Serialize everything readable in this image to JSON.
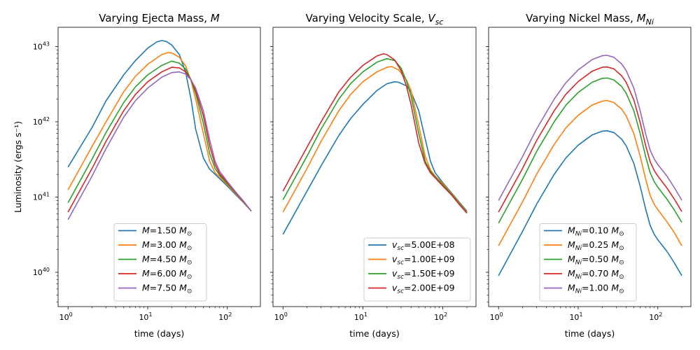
{
  "chart_data": [
    {
      "type": "line",
      "title": "Varying Ejecta Mass, $M$",
      "title_text": "Varying Ejecta Mass, ",
      "title_var": "M",
      "xlabel": "time (days)",
      "ylabel": "Luminosity (ergs s⁻¹)",
      "xscale": "log",
      "yscale": "log",
      "xlim": [
        0.75,
        260
      ],
      "ylim": [
        3.5e+39,
        1.8e+43
      ],
      "xticks": [
        "10^0",
        "10^1",
        "10^2"
      ],
      "yticks": [
        "10^40",
        "10^41",
        "10^42",
        "10^43"
      ],
      "legend_loc": "lower center",
      "series": [
        {
          "name": "M=1.50 M⊙",
          "color": "#1f77b4",
          "x": [
            1,
            2,
            3,
            5,
            7,
            10,
            13,
            15,
            17,
            20,
            25,
            30,
            35,
            40,
            50,
            60,
            70,
            80,
            100,
            130,
            160,
            200
          ],
          "y": [
            2.5e+41,
            8.4e+41,
            1.9e+42,
            4.2e+42,
            6.5e+42,
            9.5e+42,
            1.15e+43,
            1.2e+43,
            1.17e+43,
            1.05e+43,
            7.8e+42,
            4.5e+42,
            2e+42,
            8e+41,
            3.3e+41,
            2.35e+41,
            2e+41,
            1.75e+41,
            1.4e+41,
            1.05e+41,
            8.4e+40,
            6.5e+40
          ]
        },
        {
          "name": "M=3.00 M⊙",
          "color": "#ff7f0e",
          "x": [
            1,
            2,
            3,
            5,
            7,
            10,
            15,
            18,
            20,
            25,
            30,
            35,
            40,
            50,
            60,
            70,
            80,
            100,
            130,
            160,
            200
          ],
          "y": [
            1.25e+41,
            4.7e+41,
            1e+42,
            2.5e+42,
            4e+42,
            5.8e+42,
            7.8e+42,
            8.3e+42,
            8.2e+42,
            7.2e+42,
            5.5e+42,
            3.5e+42,
            2e+42,
            7e+41,
            3e+41,
            2.1e+41,
            1.85e+41,
            1.45e+41,
            1.08e+41,
            8.5e+40,
            6.5e+40
          ]
        },
        {
          "name": "M=4.50 M⊙",
          "color": "#2ca02c",
          "x": [
            1,
            2,
            3,
            5,
            7,
            10,
            15,
            20,
            25,
            30,
            35,
            40,
            50,
            60,
            70,
            80,
            100,
            130,
            160,
            200
          ],
          "y": [
            8.4e+40,
            3.2e+41,
            7.2e+41,
            1.8e+42,
            2.9e+42,
            4.2e+42,
            5.6e+42,
            6.4e+42,
            6e+42,
            5e+42,
            3.6e+42,
            2.4e+42,
            9.5e+41,
            3.8e+41,
            2.4e+41,
            1.95e+41,
            1.5e+41,
            1.1e+41,
            8.6e+40,
            6.5e+40
          ]
        },
        {
          "name": "M=6.00 M⊙",
          "color": "#d62728",
          "x": [
            1,
            2,
            3,
            5,
            7,
            10,
            15,
            20,
            25,
            30,
            35,
            40,
            50,
            60,
            70,
            80,
            100,
            130,
            160,
            200
          ],
          "y": [
            6.3e+40,
            2.4e+41,
            5.5e+41,
            1.4e+42,
            2.3e+42,
            3.4e+42,
            4.6e+42,
            5.3e+42,
            5.2e+42,
            4.6e+42,
            3.6e+42,
            2.6e+42,
            1.2e+42,
            4.8e+41,
            2.7e+41,
            2.05e+41,
            1.55e+41,
            1.12e+41,
            8.7e+40,
            6.5e+40
          ]
        },
        {
          "name": "M=7.50 M⊙",
          "color": "#9467bd",
          "x": [
            1,
            2,
            3,
            5,
            7,
            10,
            15,
            20,
            25,
            30,
            35,
            40,
            50,
            60,
            70,
            80,
            100,
            130,
            160,
            200
          ],
          "y": [
            5e+40,
            1.9e+41,
            4.4e+41,
            1.15e+42,
            1.9e+42,
            2.8e+42,
            3.9e+42,
            4.5e+42,
            4.6e+42,
            4.3e+42,
            3.6e+42,
            2.8e+42,
            1.4e+42,
            5.8e+41,
            3e+41,
            2.2e+41,
            1.6e+41,
            1.14e+41,
            8.8e+40,
            6.5e+40
          ]
        }
      ]
    },
    {
      "type": "line",
      "title": "Varying Velocity Scale, $V_{sc}$",
      "title_text": "Varying Velocity Scale, ",
      "title_var": "V",
      "title_sub": "sc",
      "xlabel": "time (days)",
      "xscale": "log",
      "yscale": "log",
      "xlim": [
        0.75,
        260
      ],
      "ylim": [
        3.5e+39,
        1.8e+43
      ],
      "xticks": [
        "10^0",
        "10^1",
        "10^2"
      ],
      "legend_loc": "lower right",
      "series": [
        {
          "name": "v_sc=5.00E+08",
          "color": "#1f77b4",
          "x": [
            1,
            2,
            3,
            5,
            7,
            10,
            15,
            20,
            25,
            28,
            35,
            40,
            50,
            60,
            70,
            80,
            100,
            130,
            160,
            200
          ],
          "y": [
            3.2e+40,
            1.2e+41,
            2.6e+41,
            6.6e+41,
            1.1e+42,
            1.7e+42,
            2.6e+42,
            3.2e+42,
            3.4e+42,
            3.35e+42,
            3e+42,
            2.5e+42,
            1.4e+42,
            6e+41,
            3e+41,
            2.1e+41,
            1.55e+41,
            1.12e+41,
            8.6e+40,
            6.5e+40
          ]
        },
        {
          "name": "v_sc=1.00E+09",
          "color": "#ff7f0e",
          "x": [
            1,
            2,
            3,
            5,
            7,
            10,
            15,
            20,
            23,
            28,
            35,
            40,
            50,
            60,
            70,
            80,
            100,
            130,
            160,
            200
          ],
          "y": [
            6.3e+40,
            2.4e+41,
            5.5e+41,
            1.4e+42,
            2.3e+42,
            3.4e+42,
            4.6e+42,
            5.3e+42,
            5.4e+42,
            4.9e+42,
            3.6e+42,
            2.6e+42,
            9e+41,
            3.5e+41,
            2.3e+41,
            1.9e+41,
            1.5e+41,
            1.1e+41,
            8.4e+40,
            6.3e+40
          ]
        },
        {
          "name": "v_sc=1.50E+09",
          "color": "#2ca02c",
          "x": [
            1,
            2,
            3,
            5,
            7,
            10,
            15,
            20,
            25,
            30,
            35,
            40,
            50,
            60,
            70,
            80,
            100,
            130,
            160,
            200
          ],
          "y": [
            9.2e+40,
            3.5e+41,
            8e+41,
            2e+42,
            3.2e+42,
            4.6e+42,
            6.2e+42,
            6.9e+42,
            6.5e+42,
            5.2e+42,
            3.5e+42,
            2.2e+42,
            7e+41,
            3e+41,
            2.2e+41,
            1.85e+41,
            1.45e+41,
            1.08e+41,
            8.2e+40,
            6.2e+40
          ]
        },
        {
          "name": "v_sc=2.00E+09",
          "color": "#d62728",
          "x": [
            1,
            2,
            3,
            5,
            7,
            10,
            15,
            18,
            20,
            25,
            30,
            35,
            40,
            50,
            60,
            70,
            80,
            100,
            130,
            160,
            200
          ],
          "y": [
            1.2e+41,
            4.6e+41,
            1e+42,
            2.5e+42,
            3.9e+42,
            5.6e+42,
            7.5e+42,
            8e+42,
            7.8e+42,
            6.6e+42,
            4.8e+42,
            3e+42,
            1.7e+42,
            5.2e+41,
            2.8e+41,
            2.1e+41,
            1.8e+41,
            1.4e+41,
            1.05e+41,
            8e+40,
            6.1e+40
          ]
        }
      ]
    },
    {
      "type": "line",
      "title": "Varying Nickel Mass, $M_{Ni}$",
      "title_text": "Varying Nickel Mass, ",
      "title_var": "M",
      "title_sub": "Ni",
      "xlabel": "time (days)",
      "xscale": "log",
      "yscale": "log",
      "xlim": [
        0.75,
        260
      ],
      "ylim": [
        3.5e+39,
        1.8e+43
      ],
      "xticks": [
        "10^0",
        "10^1",
        "10^2"
      ],
      "legend_loc": "lower center",
      "series": [
        {
          "name": "M_Ni=0.10 M⊙",
          "color": "#1f77b4",
          "x": [
            1,
            2,
            3,
            5,
            7,
            10,
            15,
            20,
            23,
            28,
            35,
            40,
            50,
            60,
            70,
            80,
            90,
            100,
            130,
            160,
            200
          ],
          "y": [
            9e+39,
            3.5e+40,
            8e+40,
            2e+41,
            3.3e+41,
            4.9e+41,
            6.7e+41,
            7.5e+41,
            7.6e+41,
            7.2e+41,
            5.9e+41,
            4.8e+41,
            2.8e+41,
            1.4e+41,
            7e+40,
            4.2e+40,
            3.2e+40,
            2.7e+40,
            1.9e+40,
            1.35e+40,
            9e+39
          ]
        },
        {
          "name": "M_Ni=0.25 M⊙",
          "color": "#ff7f0e",
          "x": [
            1,
            2,
            3,
            5,
            7,
            10,
            15,
            20,
            23,
            28,
            35,
            40,
            50,
            60,
            70,
            80,
            90,
            100,
            130,
            160,
            200
          ],
          "y": [
            2.25e+40,
            8.6e+40,
            2e+41,
            5e+41,
            8.3e+41,
            1.22e+42,
            1.67e+42,
            1.88e+42,
            1.92e+42,
            1.8e+42,
            1.48e+42,
            1.2e+42,
            7e+41,
            3.5e+41,
            1.75e+41,
            1.05e+41,
            8e+40,
            6.8e+40,
            4.7e+40,
            3.4e+40,
            2.25e+40
          ]
        },
        {
          "name": "M_Ni=0.50 M⊙",
          "color": "#2ca02c",
          "x": [
            1,
            2,
            3,
            5,
            7,
            10,
            15,
            20,
            23,
            28,
            35,
            40,
            50,
            60,
            70,
            80,
            90,
            100,
            130,
            160,
            200
          ],
          "y": [
            4.5e+40,
            1.72e+41,
            4e+41,
            1e+42,
            1.66e+42,
            2.45e+42,
            3.35e+42,
            3.78e+42,
            3.82e+42,
            3.6e+42,
            2.95e+42,
            2.4e+42,
            1.4e+42,
            7e+41,
            3.5e+41,
            2.1e+41,
            1.6e+41,
            1.35e+41,
            9.4e+40,
            6.8e+40,
            4.6e+40
          ]
        },
        {
          "name": "M_Ni=0.70 M⊙",
          "color": "#d62728",
          "x": [
            1,
            2,
            3,
            5,
            7,
            10,
            15,
            20,
            23,
            28,
            35,
            40,
            50,
            60,
            70,
            80,
            90,
            100,
            130,
            160,
            200
          ],
          "y": [
            6.3e+40,
            2.4e+41,
            5.6e+41,
            1.4e+42,
            2.32e+42,
            3.42e+42,
            4.7e+42,
            5.3e+42,
            5.35e+42,
            5.05e+42,
            4.1e+42,
            3.35e+42,
            1.95e+42,
            9.8e+41,
            4.9e+41,
            2.95e+41,
            2.25e+41,
            1.9e+41,
            1.32e+41,
            9.5e+40,
            6.4e+40
          ]
        },
        {
          "name": "M_Ni=1.00 M⊙",
          "color": "#9467bd",
          "x": [
            1,
            2,
            3,
            5,
            7,
            10,
            15,
            20,
            23,
            28,
            35,
            40,
            50,
            60,
            70,
            80,
            90,
            100,
            130,
            160,
            200
          ],
          "y": [
            9e+40,
            3.45e+41,
            8e+41,
            2e+42,
            3.3e+42,
            4.9e+42,
            6.7e+42,
            7.55e+42,
            7.65e+42,
            7.2e+42,
            5.9e+42,
            4.8e+42,
            2.8e+42,
            1.4e+42,
            7e+41,
            4.2e+41,
            3.2e+41,
            2.7e+41,
            1.9e+41,
            1.35e+41,
            9.1e+40
          ]
        }
      ]
    }
  ]
}
